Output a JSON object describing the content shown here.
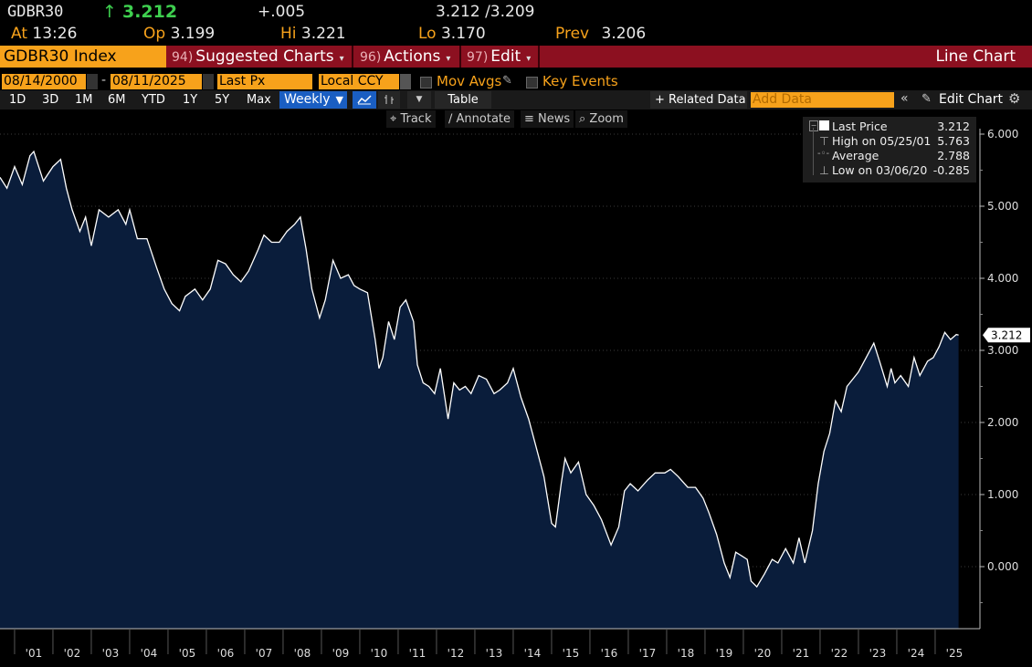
{
  "quote": {
    "ticker": "GDBR30",
    "arrow": "↑",
    "last": "3.212",
    "change": "+.005",
    "bid_ask": "3.212 /3.209",
    "at_label": "At",
    "time": "13:26",
    "open_label": "Op",
    "open": "3.199",
    "high_label": "Hi",
    "high": "3.221",
    "low_label": "Lo",
    "low": "3.170",
    "prev_label": "Prev",
    "prev": "3.206"
  },
  "command_bar": {
    "security": "GDBR30 Index",
    "menus": [
      {
        "num": "94)",
        "label": "Suggested Charts"
      },
      {
        "num": "96)",
        "label": "Actions"
      },
      {
        "num": "97)",
        "label": "Edit"
      }
    ],
    "chart_type": "Line Chart"
  },
  "options": {
    "start_date": "08/14/2000",
    "end_date": "08/11/2025",
    "field": "Last Px",
    "currency": "Local CCY",
    "mov_avgs": "Mov Avgs",
    "key_events": "Key Events"
  },
  "periods": [
    "1D",
    "3D",
    "1M",
    "6M",
    "YTD",
    "1Y",
    "5Y",
    "Max"
  ],
  "frequency": "Weekly",
  "table_label": "Table",
  "related_data": "+ Related Data",
  "add_data_placeholder": "Add Data",
  "edit_chart": "Edit Chart",
  "tools": {
    "track": "Track",
    "annotate": "Annotate",
    "news": "News",
    "zoom": "Zoom"
  },
  "legend": {
    "last_label": "Last Price",
    "last_value": "3.212",
    "high_label": "High on 05/25/01",
    "high_value": "5.763",
    "avg_label": "Average",
    "avg_value": "2.788",
    "low_label": "Low on 03/06/20",
    "low_value": "-0.285"
  },
  "colors": {
    "accent_orange": "#f7a21b",
    "bar_red": "#8c1020",
    "area_fill": "#0a1d3b",
    "line": "#ffffff",
    "up_green": "#3ecf4f"
  },
  "chart_data": {
    "type": "area",
    "y_axis_side": "right",
    "ylim": [
      -0.8,
      6.3
    ],
    "y_ticks": [
      0,
      1,
      2,
      3,
      4,
      5,
      6
    ],
    "y_tick_labels": [
      "0.000",
      "1.000",
      "2.000",
      "3.000",
      "4.000",
      "5.000",
      "6.000"
    ],
    "x_tick_labels": [
      "'01",
      "'02",
      "'03",
      "'04",
      "'05",
      "'06",
      "'07",
      "'08",
      "'09",
      "'10",
      "'11",
      "'12",
      "'13",
      "'14",
      "'15",
      "'16",
      "'17",
      "'18",
      "'19",
      "'20",
      "'21",
      "'22",
      "'23",
      "'24",
      "'25"
    ],
    "last_value_tag": "3.212",
    "series": [
      {
        "x": [
          2000.62,
          2000.8,
          2001.0,
          2001.2,
          2001.4,
          2001.5,
          2001.75,
          2002.0,
          2002.2,
          2002.35,
          2002.5,
          2002.7,
          2002.85,
          2003.0,
          2003.2,
          2003.45,
          2003.7,
          2003.9,
          2004.0,
          2004.2,
          2004.45,
          2004.7,
          2004.9,
          2005.1,
          2005.3,
          2005.45,
          2005.7,
          2005.9,
          2006.1,
          2006.3,
          2006.5,
          2006.7,
          2006.9,
          2007.1,
          2007.35,
          2007.5,
          2007.7,
          2007.9,
          2008.1,
          2008.3,
          2008.45,
          2008.6,
          2008.75,
          2008.95,
          2009.1,
          2009.3,
          2009.5,
          2009.7,
          2009.85,
          2010.0,
          2010.2,
          2010.4,
          2010.5,
          2010.6,
          2010.75,
          2010.9,
          2011.05,
          2011.2,
          2011.4,
          2011.5,
          2011.65,
          2011.8,
          2011.95,
          2012.1,
          2012.3,
          2012.45,
          2012.6,
          2012.75,
          2012.9,
          2013.1,
          2013.3,
          2013.5,
          2013.65,
          2013.85,
          2014.0,
          2014.2,
          2014.4,
          2014.6,
          2014.8,
          2015.0,
          2015.1,
          2015.25,
          2015.35,
          2015.5,
          2015.7,
          2015.9,
          2016.1,
          2016.3,
          2016.55,
          2016.75,
          2016.9,
          2017.05,
          2017.25,
          2017.5,
          2017.7,
          2017.95,
          2018.1,
          2018.3,
          2018.55,
          2018.75,
          2018.95,
          2019.1,
          2019.3,
          2019.5,
          2019.65,
          2019.8,
          2019.95,
          2020.1,
          2020.2,
          2020.35,
          2020.55,
          2020.75,
          2020.9,
          2021.1,
          2021.3,
          2021.45,
          2021.6,
          2021.8,
          2021.95,
          2022.1,
          2022.25,
          2022.4,
          2022.55,
          2022.7,
          2022.85,
          2023.0,
          2023.2,
          2023.4,
          2023.55,
          2023.75,
          2023.85,
          2023.95,
          2024.1,
          2024.3,
          2024.45,
          2024.6,
          2024.7,
          2024.8,
          2024.95,
          2025.1,
          2025.25,
          2025.4,
          2025.55,
          2025.61
        ],
        "y": [
          5.4,
          5.25,
          5.55,
          5.3,
          5.7,
          5.76,
          5.35,
          5.55,
          5.65,
          5.25,
          4.95,
          4.65,
          4.85,
          4.45,
          4.95,
          4.85,
          4.95,
          4.75,
          4.95,
          4.55,
          4.55,
          4.15,
          3.85,
          3.65,
          3.55,
          3.75,
          3.85,
          3.7,
          3.85,
          4.25,
          4.2,
          4.05,
          3.95,
          4.1,
          4.4,
          4.6,
          4.5,
          4.5,
          4.65,
          4.75,
          4.85,
          4.4,
          3.85,
          3.45,
          3.7,
          4.25,
          4.0,
          4.05,
          3.9,
          3.85,
          3.8,
          3.15,
          2.75,
          2.9,
          3.4,
          3.15,
          3.6,
          3.7,
          3.4,
          2.8,
          2.55,
          2.5,
          2.4,
          2.75,
          2.05,
          2.55,
          2.45,
          2.5,
          2.4,
          2.65,
          2.6,
          2.4,
          2.45,
          2.55,
          2.75,
          2.35,
          2.05,
          1.65,
          1.25,
          0.6,
          0.55,
          1.15,
          1.5,
          1.3,
          1.45,
          1.0,
          0.85,
          0.65,
          0.3,
          0.55,
          1.05,
          1.15,
          1.05,
          1.2,
          1.3,
          1.3,
          1.35,
          1.25,
          1.1,
          1.1,
          0.95,
          0.75,
          0.45,
          0.05,
          -0.15,
          0.2,
          0.15,
          0.1,
          -0.2,
          -0.28,
          -0.1,
          0.1,
          0.05,
          0.25,
          0.05,
          0.4,
          0.05,
          0.5,
          1.15,
          1.6,
          1.85,
          2.3,
          2.15,
          2.5,
          2.6,
          2.7,
          2.9,
          3.1,
          2.85,
          2.5,
          2.75,
          2.55,
          2.65,
          2.5,
          2.9,
          2.65,
          2.75,
          2.85,
          2.9,
          3.05,
          3.25,
          3.15,
          3.22,
          3.212
        ]
      }
    ]
  }
}
